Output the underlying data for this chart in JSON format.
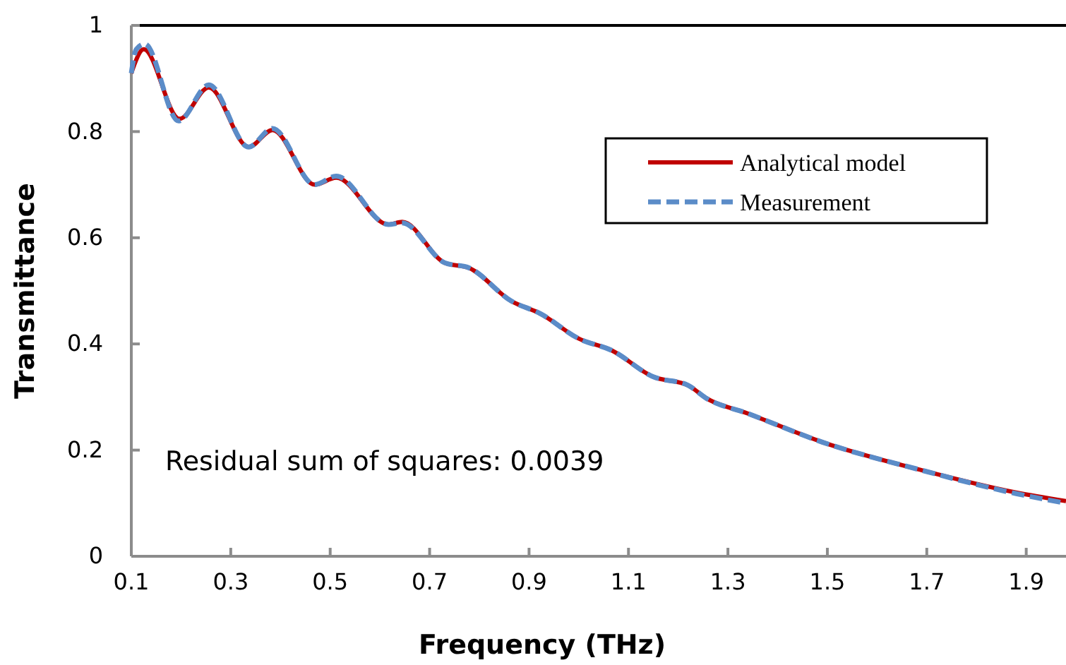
{
  "chart_data": {
    "type": "line",
    "xlabel": "Frequency (THz)",
    "ylabel": "Transmittance",
    "xlim": [
      0.1,
      1.98
    ],
    "ylim": [
      0,
      1
    ],
    "xticks": [
      0.1,
      0.3,
      0.5,
      0.7,
      0.9,
      1.1,
      1.3,
      1.5,
      1.7,
      1.9
    ],
    "yticks": [
      0,
      0.2,
      0.4,
      0.6,
      0.8,
      1
    ],
    "grid": false,
    "legend": "top right",
    "annotations": [
      "Residual sum of squares: 0.0039"
    ],
    "series": [
      {
        "name": "Analytical model",
        "color": "#c00000",
        "line_style": "solid",
        "x": [
          0.1,
          0.125,
          0.197,
          0.256,
          0.336,
          0.384,
          0.469,
          0.512,
          0.617,
          0.645,
          0.73,
          0.78,
          0.864,
          0.923,
          1.0,
          1.066,
          1.15,
          1.22,
          1.256,
          1.34,
          1.49,
          1.69,
          1.88,
          1.98
        ],
        "values": [
          0.91,
          0.955,
          0.824,
          0.883,
          0.771,
          0.803,
          0.7,
          0.713,
          0.625,
          0.63,
          0.553,
          0.543,
          0.481,
          0.457,
          0.41,
          0.388,
          0.338,
          0.322,
          0.298,
          0.269,
          0.215,
          0.162,
          0.12,
          0.104
        ]
      },
      {
        "name": "Measurement",
        "color": "#5b8cc8",
        "line_style": "dashed",
        "x": [
          0.1,
          0.11,
          0.127,
          0.195,
          0.256,
          0.336,
          0.384,
          0.469,
          0.512,
          0.617,
          0.645,
          0.73,
          0.78,
          0.864,
          0.923,
          1.0,
          1.066,
          1.15,
          1.22,
          1.256,
          1.34,
          1.49,
          1.69,
          1.88,
          1.98
        ],
        "values": [
          0.91,
          0.955,
          0.965,
          0.82,
          0.888,
          0.771,
          0.806,
          0.7,
          0.716,
          0.625,
          0.628,
          0.553,
          0.543,
          0.481,
          0.457,
          0.41,
          0.388,
          0.338,
          0.322,
          0.298,
          0.269,
          0.215,
          0.162,
          0.118,
          0.1
        ]
      }
    ]
  }
}
